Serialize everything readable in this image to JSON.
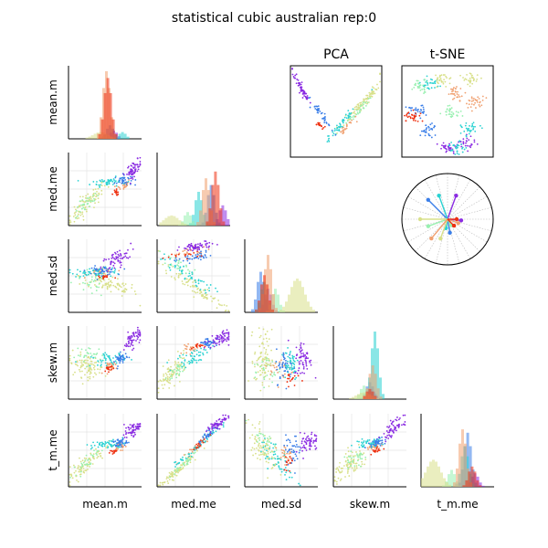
{
  "title": "statistical cubic australian rep:0",
  "variables": [
    "mean.m",
    "med.me",
    "med.sd",
    "skew.m",
    "t_m.me"
  ],
  "panel_titles": {
    "pca": "PCA",
    "tsne": "t-SNE"
  },
  "colors": [
    "#8a2be2",
    "#3a7ee8",
    "#2ad2d2",
    "#98f0b0",
    "#d8e08a",
    "#f0a070",
    "#ee3010"
  ],
  "chart_data": [
    {
      "type": "histogram",
      "name": "diagonal-histograms",
      "variables": [
        "mean.m",
        "med.me",
        "med.sd",
        "skew.m",
        "t_m.me"
      ],
      "groups": 7,
      "relative_peaks": [
        [
          0.12,
          0.2,
          0.1,
          0.05,
          0.1,
          1.0,
          0.9
        ],
        [
          0.3,
          0.6,
          0.5,
          0.2,
          0.15,
          0.7,
          0.8
        ],
        [
          0.35,
          0.6,
          0.45,
          0.35,
          0.5,
          0.85,
          0.55
        ],
        [
          0.15,
          0.25,
          1.0,
          0.2,
          0.1,
          0.5,
          0.15
        ],
        [
          0.2,
          0.8,
          0.6,
          0.25,
          0.4,
          0.85,
          0.3
        ]
      ]
    },
    {
      "type": "scatter",
      "name": "pair-scatter-matrix",
      "note_groups": 7,
      "pairs": [
        [
          "mean.m",
          "med.me"
        ],
        [
          "mean.m",
          "med.sd"
        ],
        [
          "med.me",
          "med.sd"
        ],
        [
          "mean.m",
          "skew.m"
        ],
        [
          "med.me",
          "skew.m"
        ],
        [
          "med.sd",
          "skew.m"
        ],
        [
          "mean.m",
          "t_m.me"
        ],
        [
          "med.me",
          "t_m.me"
        ],
        [
          "med.sd",
          "t_m.me"
        ],
        [
          "skew.m",
          "t_m.me"
        ]
      ]
    },
    {
      "type": "scatter",
      "name": "PCA",
      "title": "PCA"
    },
    {
      "type": "scatter",
      "name": "t-SNE",
      "title": "t-SNE"
    },
    {
      "type": "radar",
      "name": "loadings-star",
      "spokes": 7
    }
  ]
}
